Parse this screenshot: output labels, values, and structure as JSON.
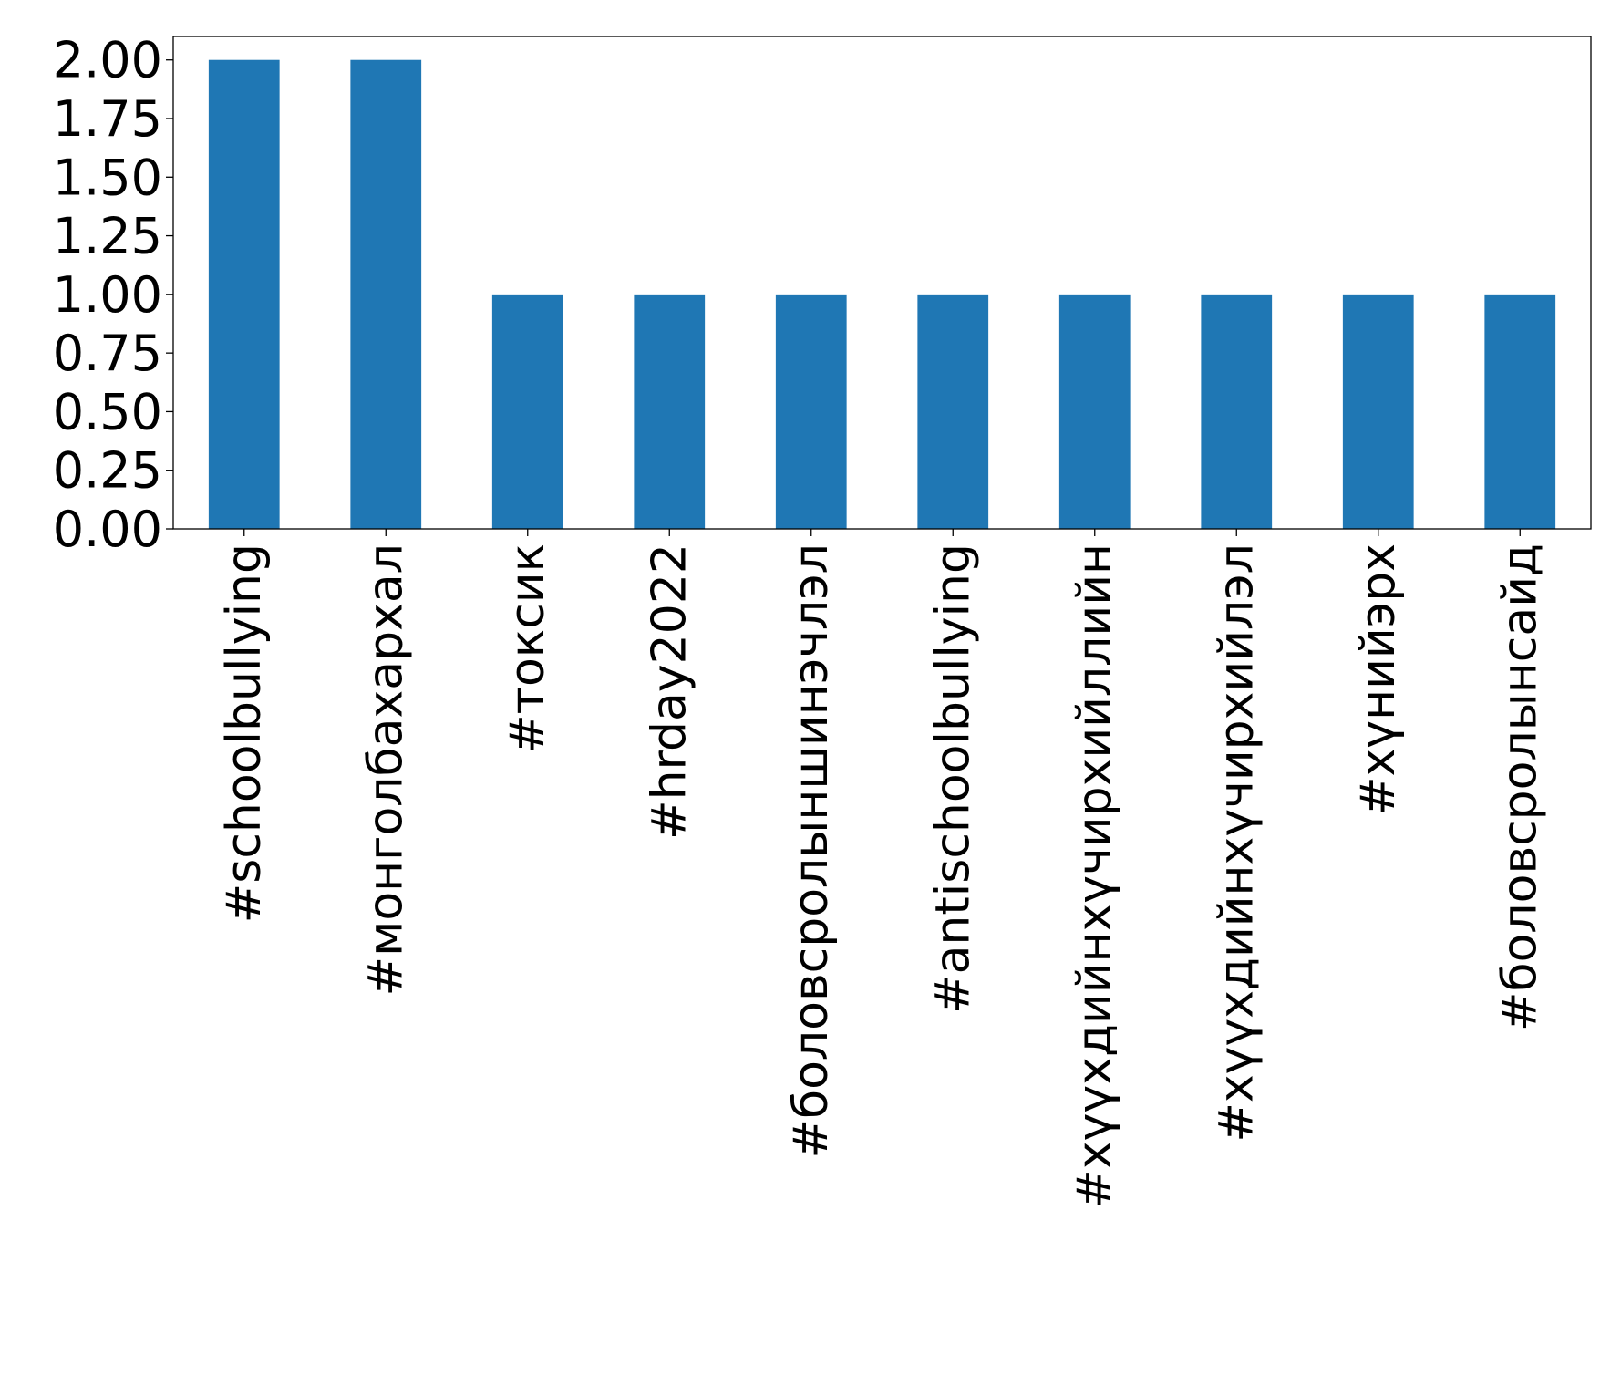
{
  "chart_data": {
    "type": "bar",
    "title": "",
    "xlabel": "",
    "ylabel": "",
    "categories": [
      "#schoolbullying",
      "#монголбахархал",
      "#токсик",
      "#hrday2022",
      "#боловсролыншинэчлэл",
      "#antischoolbullying",
      "#хүүхдийнхүчирхийллийн",
      "#хүүхдийнхүчирхийлэл",
      "#хүнийэрх",
      "#боловсролынсайд"
    ],
    "values": [
      2,
      2,
      1,
      1,
      1,
      1,
      1,
      1,
      1,
      1
    ],
    "ylim": [
      0,
      2.1
    ],
    "yticks": [
      "0.00",
      "0.25",
      "0.50",
      "0.75",
      "1.00",
      "1.25",
      "1.50",
      "1.75",
      "2.00"
    ],
    "bar_color": "#1f77b4",
    "grid": false,
    "legend": "none"
  }
}
